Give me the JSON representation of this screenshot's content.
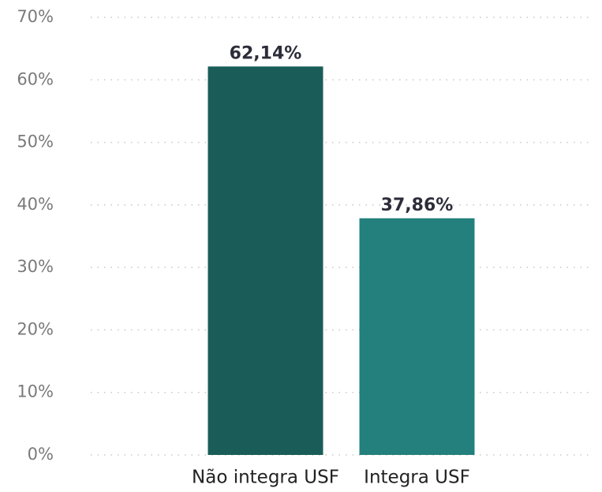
{
  "chart_data": {
    "type": "bar",
    "categories": [
      "Não integra USF",
      "Integra USF"
    ],
    "values": [
      62.14,
      37.86
    ],
    "value_labels": [
      "62,14%",
      "37,86%"
    ],
    "colors": [
      "#1a5c58",
      "#23807c"
    ],
    "ylim": [
      0,
      70
    ],
    "yticks": [
      {
        "value": 0,
        "label": "0%"
      },
      {
        "value": 10,
        "label": "10%"
      },
      {
        "value": 20,
        "label": "20%"
      },
      {
        "value": 30,
        "label": "30%"
      },
      {
        "value": 40,
        "label": "40%"
      },
      {
        "value": 50,
        "label": "50%"
      },
      {
        "value": 60,
        "label": "60%"
      },
      {
        "value": 70,
        "label": "70%"
      }
    ],
    "grid": true
  }
}
